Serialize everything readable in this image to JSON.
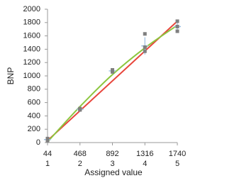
{
  "chart_data": {
    "type": "scatter",
    "x_label": "Assigned value",
    "y_label": "BNP",
    "xlim": [
      44,
      1740
    ],
    "ylim": [
      0,
      2000
    ],
    "xticks": [
      44,
      468,
      892,
      1316,
      1740
    ],
    "x_secondary_ticks": [
      1,
      2,
      3,
      4,
      5
    ],
    "yticks": [
      0,
      200,
      400,
      600,
      800,
      1000,
      1200,
      1400,
      1600,
      1800,
      2000
    ],
    "series": [
      {
        "type": "line",
        "color": "#e8463c",
        "x": [
          44,
          1740
        ],
        "values": [
          30,
          1820
        ]
      },
      {
        "type": "curve",
        "color": "#8cc63f",
        "x": [
          44,
          468,
          892,
          1316,
          1740
        ],
        "values": [
          10,
          540,
          1020,
          1420,
          1760
        ]
      },
      {
        "type": "errorbar",
        "color": "#9dbfe0",
        "x": [
          44,
          468,
          892,
          1316,
          1740
        ],
        "values": [
          45,
          500,
          1075,
          1450,
          1740
        ],
        "errors": [
          20,
          15,
          20,
          130,
          75
        ]
      },
      {
        "type": "scatter",
        "color": "#7f7f7f",
        "x": [
          44,
          44,
          44,
          468,
          468,
          468,
          892,
          892,
          892,
          1316,
          1316,
          1316,
          1740,
          1740,
          1740
        ],
        "values": [
          40,
          60,
          30,
          490,
          510,
          500,
          1060,
          1090,
          1070,
          1630,
          1370,
          1430,
          1820,
          1670,
          1740
        ]
      }
    ]
  }
}
